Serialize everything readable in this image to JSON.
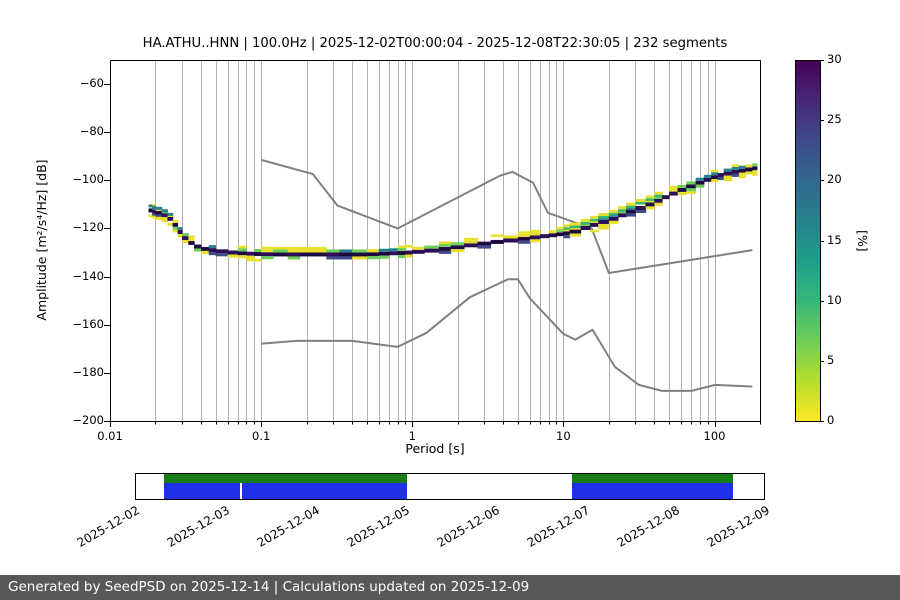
{
  "title": "HA.ATHU..HNN | 100.0Hz | 2025-12-02T00:00:04 - 2025-12-08T22:30:05 | 232 segments",
  "plot": {
    "xlabel": "Period [s]",
    "ylabel": "Amplitude [m²/s⁴/Hz] [dB]",
    "x_tick_values": [
      0.01,
      0.1,
      1,
      10,
      100
    ],
    "x_tick_labels": [
      "0.01",
      "0.1",
      "1",
      "10",
      "100"
    ],
    "y_tick_values": [
      -60,
      -80,
      -100,
      -120,
      -140,
      -160,
      -180,
      -200
    ],
    "y_tick_labels": [
      "−60",
      "−80",
      "−100",
      "−120",
      "−140",
      "−160",
      "−180",
      "−200"
    ],
    "xlim": [
      0.01,
      200
    ],
    "ylim": [
      -200,
      -50
    ],
    "grid_color": "#b0b0b0",
    "model_color": "#808080",
    "frame_color": "#000000"
  },
  "colorbar": {
    "label": "[%]",
    "ticks": [
      0,
      5,
      10,
      15,
      20,
      25,
      30
    ],
    "tick_labels": [
      "0",
      "5",
      "10",
      "15",
      "20",
      "25",
      "30"
    ],
    "min": 0,
    "max": 30,
    "colors_bottom_to_top": [
      "#fde725",
      "#b5de2b",
      "#6ece58",
      "#35b779",
      "#1f9e89",
      "#26828e",
      "#31688e",
      "#3e4a89",
      "#482878",
      "#440154"
    ]
  },
  "band_colors": {
    "dark": "#2d0f57",
    "dark2": "#190a38",
    "blue": "#3e4a89",
    "teal": "#26828e",
    "green": "#35b779",
    "light_green": "#6ece58",
    "yellow": "#e8e02a"
  },
  "chart_data": {
    "type": "heatmap",
    "title": "HA.ATHU..HNN | 100.0Hz | 2025-12-02T00:00:04 - 2025-12-08T22:30:05 | 232 segments",
    "xlabel": "Period [s]",
    "ylabel": "Amplitude [m²/s⁴/Hz] [dB]",
    "xscale": "log",
    "xlim": [
      0.01,
      200
    ],
    "ylim": [
      -200,
      -50
    ],
    "colorbar_label": "[%]",
    "colorbar_range": [
      0,
      30
    ],
    "grid": "vertical-log",
    "series": [
      {
        "name": "ppsd-mode",
        "description": "mode of probabilistic power spectral density histogram [period s, amplitude dB]",
        "points": [
          [
            0.018,
            -112.5
          ],
          [
            0.019,
            -113
          ],
          [
            0.02,
            -113.5
          ],
          [
            0.022,
            -114.5
          ],
          [
            0.024,
            -116
          ],
          [
            0.026,
            -118.5
          ],
          [
            0.028,
            -121.5
          ],
          [
            0.03,
            -124
          ],
          [
            0.033,
            -126
          ],
          [
            0.036,
            -127.5
          ],
          [
            0.04,
            -128.5
          ],
          [
            0.045,
            -129
          ],
          [
            0.05,
            -129.5
          ],
          [
            0.06,
            -130
          ],
          [
            0.07,
            -130.3
          ],
          [
            0.08,
            -130.5
          ],
          [
            0.09,
            -130.6
          ],
          [
            0.1,
            -130.7
          ],
          [
            0.12,
            -130.8
          ],
          [
            0.15,
            -130.8
          ],
          [
            0.18,
            -130.8
          ],
          [
            0.22,
            -130.8
          ],
          [
            0.27,
            -130.8
          ],
          [
            0.33,
            -130.8
          ],
          [
            0.4,
            -130.8
          ],
          [
            0.5,
            -130.7
          ],
          [
            0.6,
            -130.5
          ],
          [
            0.7,
            -130.3
          ],
          [
            0.8,
            -130.2
          ],
          [
            0.9,
            -130
          ],
          [
            1,
            -129.7
          ],
          [
            1.2,
            -129.2
          ],
          [
            1.5,
            -128.5
          ],
          [
            1.8,
            -127.8
          ],
          [
            2.2,
            -127
          ],
          [
            2.7,
            -126.3
          ],
          [
            3.3,
            -125.6
          ],
          [
            4,
            -125
          ],
          [
            5,
            -124.3
          ],
          [
            6,
            -123.7
          ],
          [
            7,
            -123.2
          ],
          [
            8,
            -122.8
          ],
          [
            9,
            -122.4
          ],
          [
            10,
            -122
          ],
          [
            11,
            -121.3
          ],
          [
            13,
            -119.8
          ],
          [
            15,
            -118.5
          ],
          [
            17,
            -117.3
          ],
          [
            20,
            -116
          ],
          [
            23,
            -114.5
          ],
          [
            26,
            -113
          ],
          [
            30,
            -111.5
          ],
          [
            35,
            -110
          ],
          [
            40,
            -108.5
          ],
          [
            45,
            -107
          ],
          [
            50,
            -105.5
          ],
          [
            57,
            -104
          ],
          [
            65,
            -102.5
          ],
          [
            75,
            -101
          ],
          [
            85,
            -99.8
          ],
          [
            95,
            -98.7
          ],
          [
            105,
            -97.8
          ],
          [
            115,
            -97.2
          ],
          [
            130,
            -96.5
          ],
          [
            145,
            -96
          ],
          [
            160,
            -95.5
          ],
          [
            178,
            -95
          ]
        ]
      },
      {
        "name": "noise-model-high",
        "description": "Peterson New High Noise Model [period s, amplitude dB]",
        "points": [
          [
            0.1,
            -91.5
          ],
          [
            0.22,
            -97.4
          ],
          [
            0.32,
            -110.5
          ],
          [
            0.8,
            -120
          ],
          [
            3.8,
            -98.1
          ],
          [
            4.6,
            -96.5
          ],
          [
            6.3,
            -101
          ],
          [
            7.9,
            -113.5
          ],
          [
            15.4,
            -120
          ],
          [
            20,
            -138.5
          ],
          [
            178,
            -129
          ]
        ]
      },
      {
        "name": "noise-model-low",
        "description": "Peterson New Low Noise Model [period s, amplitude dB]",
        "points": [
          [
            0.1,
            -167.9
          ],
          [
            0.17,
            -166.7
          ],
          [
            0.4,
            -166.7
          ],
          [
            0.8,
            -169.2
          ],
          [
            1.24,
            -163.4
          ],
          [
            2.4,
            -148.6
          ],
          [
            4.3,
            -141.1
          ],
          [
            5,
            -141.1
          ],
          [
            6,
            -149
          ],
          [
            10,
            -163.8
          ],
          [
            12,
            -166.2
          ],
          [
            15.6,
            -162.1
          ],
          [
            21.9,
            -177.5
          ],
          [
            31.6,
            -185
          ],
          [
            45,
            -187.5
          ],
          [
            70,
            -187.5
          ],
          [
            101,
            -185
          ],
          [
            154,
            -185.5
          ],
          [
            178,
            -185.7
          ]
        ]
      }
    ]
  },
  "timeline": {
    "date_labels": [
      "2025-12-02",
      "2025-12-03",
      "2025-12-04",
      "2025-12-05",
      "2025-12-06",
      "2025-12-07",
      "2025-12-08",
      "2025-12-09"
    ],
    "segments": [
      {
        "start": 0.044,
        "end": 0.432
      },
      {
        "start": 0.695,
        "end": 0.951
      }
    ],
    "gap_marks": [
      0.167
    ],
    "green_color": "#167d16",
    "blue_color": "#2030e8"
  },
  "footer": {
    "text": "Generated by SeedPSD on 2025-12-14 | Calculations updated on 2025-12-09",
    "bg_color": "#58585a",
    "text_color": "#ffffff"
  }
}
